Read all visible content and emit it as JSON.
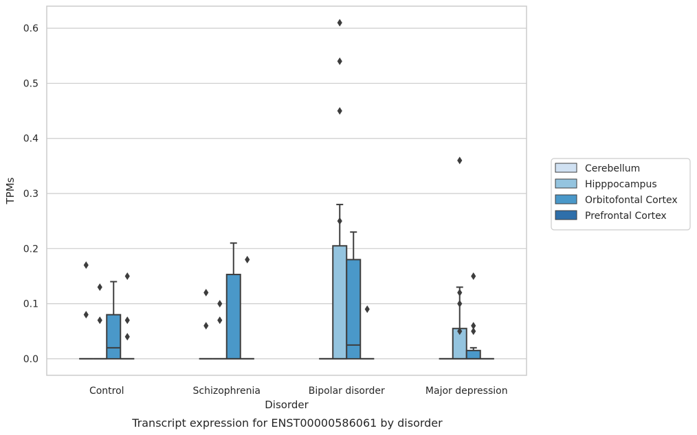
{
  "chart_data": {
    "type": "box",
    "title": "",
    "caption": "Transcript expression for ENST00000586061 by disorder",
    "xlabel": "Disorder",
    "ylabel": "TPMs",
    "categories": [
      "Control",
      "Schizophrenia",
      "Bipolar disorder",
      "Major depression"
    ],
    "ylim": [
      -0.03,
      0.64
    ],
    "yticks": [
      0.0,
      0.1,
      0.2,
      0.3,
      0.4,
      0.5,
      0.6
    ],
    "ytick_labels": [
      "0.0",
      "0.1",
      "0.2",
      "0.3",
      "0.4",
      "0.5",
      "0.6"
    ],
    "grid": true,
    "legend": {
      "position": "right"
    },
    "series": [
      {
        "name": "Cerebellum",
        "color": "#d0e1f2",
        "boxes": [
          {
            "q1": 0,
            "median": 0,
            "q3": 0,
            "whislo": 0,
            "whishi": 0,
            "fliers": [
              0.17,
              0.08
            ]
          },
          {
            "q1": 0,
            "median": 0,
            "q3": 0,
            "whislo": 0,
            "whishi": 0,
            "fliers": [
              0.12,
              0.06
            ]
          },
          {
            "q1": 0,
            "median": 0,
            "q3": 0,
            "whislo": 0,
            "whishi": 0,
            "fliers": []
          },
          {
            "q1": 0,
            "median": 0,
            "q3": 0,
            "whislo": 0,
            "whishi": 0,
            "fliers": []
          }
        ]
      },
      {
        "name": "Hipppocampus",
        "color": "#94c4df",
        "boxes": [
          {
            "q1": 0,
            "median": 0,
            "q3": 0,
            "whislo": 0,
            "whishi": 0,
            "fliers": [
              0.13,
              0.07
            ]
          },
          {
            "q1": 0,
            "median": 0,
            "q3": 0,
            "whislo": 0,
            "whishi": 0,
            "fliers": [
              0.1,
              0.07
            ]
          },
          {
            "q1": 0,
            "median": 0,
            "q3": 0.205,
            "whislo": 0,
            "whishi": 0.28,
            "fliers": [
              0.25,
              0.54,
              0.61,
              0.45
            ]
          },
          {
            "q1": 0,
            "median": 0,
            "q3": 0.055,
            "whislo": 0,
            "whishi": 0.13,
            "fliers": [
              0.12,
              0.1,
              0.05,
              0.36
            ]
          }
        ]
      },
      {
        "name": "Orbitofontal Cortex",
        "color": "#4a98c9",
        "boxes": [
          {
            "q1": 0,
            "median": 0.02,
            "q3": 0.08,
            "whislo": 0,
            "whishi": 0.14,
            "fliers": []
          },
          {
            "q1": 0,
            "median": 0,
            "q3": 0.153,
            "whislo": 0,
            "whishi": 0.21,
            "fliers": []
          },
          {
            "q1": 0,
            "median": 0.025,
            "q3": 0.18,
            "whislo": 0,
            "whishi": 0.23,
            "fliers": []
          },
          {
            "q1": 0,
            "median": 0,
            "q3": 0.015,
            "whislo": 0,
            "whishi": 0.02,
            "fliers": [
              0.15,
              0.06,
              0.05
            ]
          }
        ]
      },
      {
        "name": "Prefrontal Cortex",
        "color": "#2e6faa",
        "boxes": [
          {
            "q1": 0,
            "median": 0,
            "q3": 0,
            "whislo": 0,
            "whishi": 0,
            "fliers": [
              0.15,
              0.07,
              0.04
            ]
          },
          {
            "q1": 0,
            "median": 0,
            "q3": 0,
            "whislo": 0,
            "whishi": 0,
            "fliers": [
              0.18
            ]
          },
          {
            "q1": 0,
            "median": 0,
            "q3": 0,
            "whislo": 0,
            "whishi": 0,
            "fliers": [
              0.09
            ]
          },
          {
            "q1": 0,
            "median": 0,
            "q3": 0,
            "whislo": 0,
            "whishi": 0,
            "fliers": []
          }
        ]
      }
    ]
  }
}
